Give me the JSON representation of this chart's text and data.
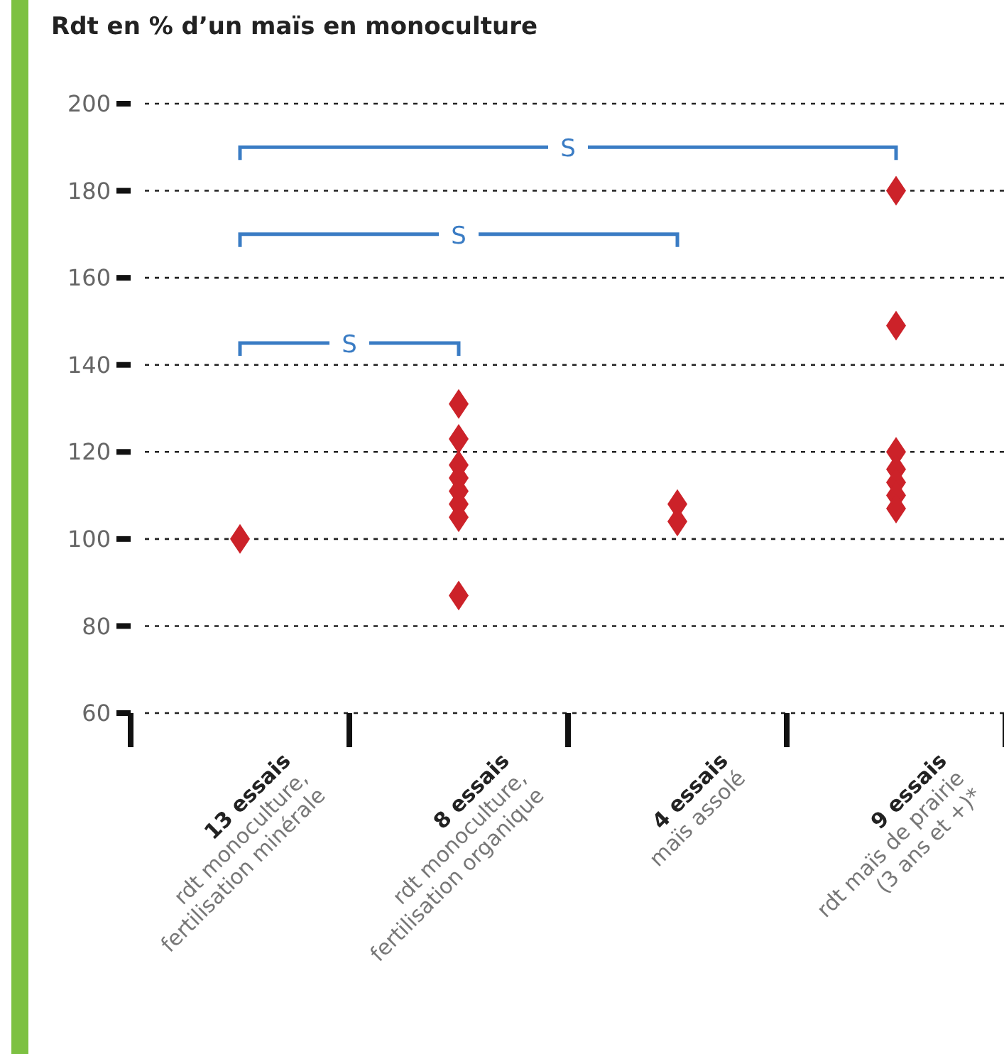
{
  "chart_data": {
    "type": "scatter",
    "title": "Rdt en % d’un maïs en monoculture",
    "categories": [
      "13 essais\nrdt monoculture,\nfertilisation minérale",
      "8 essais\nrdt monoculture,\nfertilisation organique",
      "4 essais\nmaïs assolé",
      "9 essais\nrdt maïs de prairie\n(3 ans et +)*"
    ],
    "series": [
      {
        "color": "#cc2229",
        "x": [
          "13 essais\nrdt monoculture,\nfertilisation minérale",
          "8 essais\nrdt monoculture,\nfertilisation organique",
          "8 essais\nrdt monoculture,\nfertilisation organique",
          "8 essais\nrdt monoculture,\nfertilisation organique",
          "8 essais\nrdt monoculture,\nfertilisation organique",
          "8 essais\nrdt monoculture,\nfertilisation organique",
          "8 essais\nrdt monoculture,\nfertilisation organique",
          "8 essais\nrdt monoculture,\nfertilisation organique",
          "8 essais\nrdt monoculture,\nfertilisation organique",
          "4 essais\nmaïs assolé",
          "4 essais\nmaïs assolé",
          "9 essais\nrdt maïs de prairie\n(3 ans et +)*",
          "9 essais\nrdt maïs de prairie\n(3 ans et +)*",
          "9 essais\nrdt maïs de prairie\n(3 ans et +)*",
          "9 essais\nrdt maïs de prairie\n(3 ans et +)*",
          "9 essais\nrdt maïs de prairie\n(3 ans et +)*",
          "9 essais\nrdt maïs de prairie\n(3 ans et +)*",
          "9 essais\nrdt maïs de prairie\n(3 ans et +)*"
        ],
        "values": [
          100,
          131,
          123,
          117,
          114,
          111,
          108,
          105,
          87,
          108,
          104,
          180,
          149,
          120,
          116,
          113,
          110,
          107
        ]
      }
    ],
    "ylim": [
      60,
      200
    ],
    "yticks": [
      60,
      80,
      100,
      120,
      140,
      160,
      180,
      200
    ],
    "grid": "y",
    "line_style": "dashed",
    "marker": "diamond",
    "annotations": [
      "S",
      "S",
      "S"
    ]
  }
}
